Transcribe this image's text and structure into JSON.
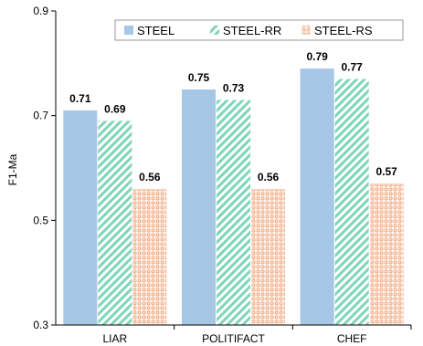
{
  "chart_data": {
    "type": "bar",
    "title": "",
    "xlabel": "",
    "ylabel": "F1-Ma",
    "ylim": [
      0.3,
      0.9
    ],
    "yticks": [
      0.3,
      0.5,
      0.7,
      0.9
    ],
    "ytick_labels": [
      "0.3",
      "0.5",
      "0.7",
      "0.9"
    ],
    "categories": [
      "LIAR",
      "POLITIFACT",
      "CHEF"
    ],
    "series": [
      {
        "name": "STEEL",
        "values": [
          0.71,
          0.75,
          0.79
        ],
        "labels": [
          "0.71",
          "0.75",
          "0.79"
        ],
        "color": "#a7c7e7",
        "pattern": "solid"
      },
      {
        "name": "STEEL-RR",
        "values": [
          0.69,
          0.73,
          0.77
        ],
        "labels": [
          "0.69",
          "0.73",
          "0.77"
        ],
        "color": "#7fd6b6",
        "pattern": "diagonal-stripes"
      },
      {
        "name": "STEEL-RS",
        "values": [
          0.56,
          0.56,
          0.57
        ],
        "labels": [
          "0.56",
          "0.56",
          "0.57"
        ],
        "color": "#f2b08a",
        "pattern": "dots"
      }
    ],
    "legend": "top-right",
    "grid": false
  }
}
